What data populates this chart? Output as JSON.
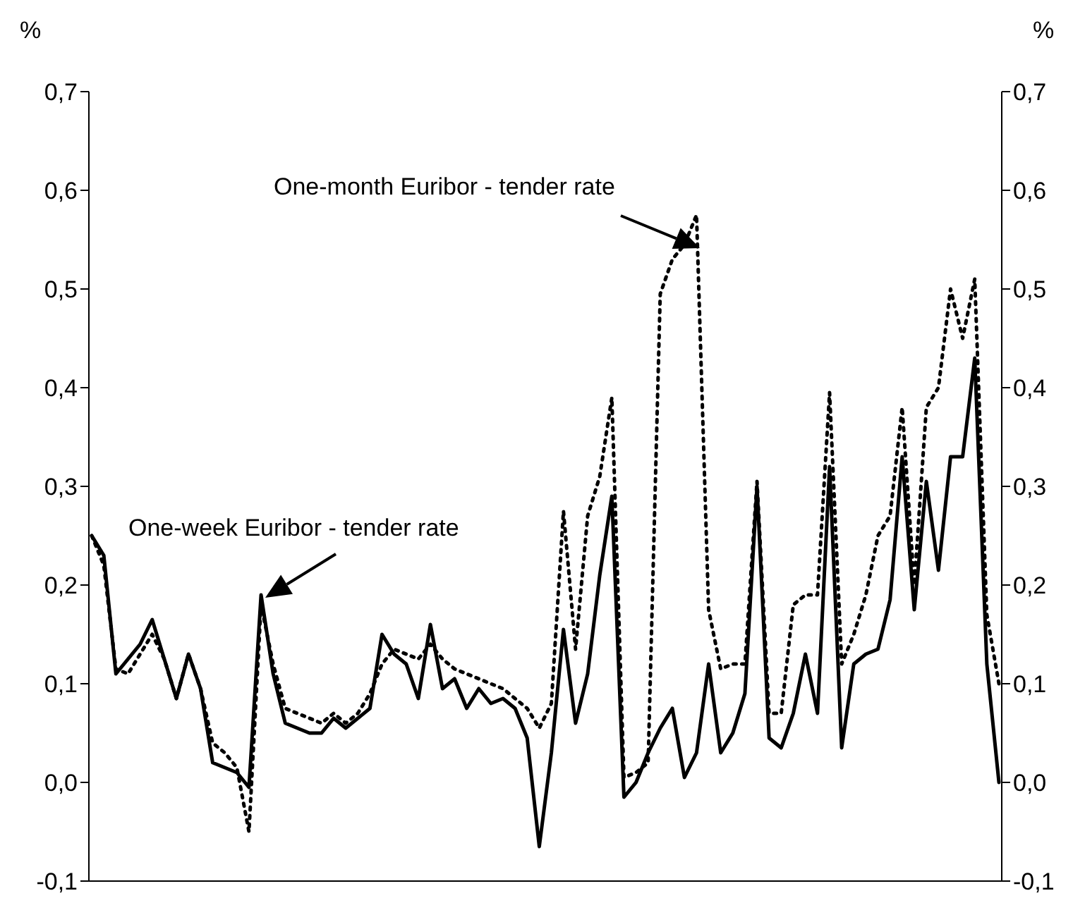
{
  "chart_data": {
    "type": "line",
    "ylabel": "%",
    "y2label": "%",
    "categories": [
      null,
      null,
      null,
      null,
      null,
      null,
      null,
      null,
      null,
      null,
      null,
      null,
      null,
      null,
      null,
      null,
      null,
      null,
      null,
      null,
      null,
      null,
      null,
      null,
      null,
      null,
      null,
      null,
      null,
      null,
      null,
      null,
      null,
      null,
      null,
      null,
      null,
      null,
      null,
      null,
      null,
      null,
      null,
      null,
      null,
      null,
      null,
      null,
      null,
      null,
      null,
      null,
      null,
      null,
      null,
      null,
      null,
      null,
      null,
      null,
      null,
      null,
      null,
      null,
      null,
      null,
      null,
      null,
      null,
      null,
      null,
      null,
      null,
      null,
      null,
      null
    ],
    "series": [
      {
        "color": "#000000",
        "line_style": "solid",
        "values": [
          0.25,
          0.23,
          0.11,
          0.125,
          0.14,
          0.165,
          0.125,
          0.085,
          0.13,
          0.095,
          0.02,
          0.015,
          0.01,
          -0.005,
          0.19,
          0.11,
          0.06,
          0.055,
          0.05,
          0.05,
          0.065,
          0.055,
          0.065,
          0.075,
          0.15,
          0.13,
          0.12,
          0.085,
          0.16,
          0.095,
          0.105,
          0.075,
          0.095,
          0.08,
          0.085,
          0.075,
          0.045,
          -0.065,
          0.03,
          0.155,
          0.06,
          0.11,
          0.21,
          0.29,
          -0.015,
          0.0,
          0.03,
          0.055,
          0.075,
          0.005,
          0.03,
          0.12,
          0.03,
          0.05,
          0.09,
          0.3,
          0.045,
          0.035,
          0.07,
          0.13,
          0.07,
          0.32,
          0.035,
          0.12,
          0.13,
          0.135,
          0.185,
          0.33,
          0.175,
          0.305,
          0.215,
          0.33,
          0.33,
          0.43,
          0.12,
          0.0
        ]
      },
      {
        "color": "#000000",
        "line_style": "dotted",
        "values": [
          0.25,
          0.22,
          0.115,
          0.11,
          0.13,
          0.15,
          0.125,
          0.085,
          0.13,
          0.095,
          0.04,
          0.03,
          0.015,
          -0.05,
          0.18,
          0.12,
          0.075,
          0.07,
          0.065,
          0.06,
          0.07,
          0.06,
          0.07,
          0.09,
          0.12,
          0.135,
          0.13,
          0.125,
          0.14,
          0.125,
          0.115,
          0.11,
          0.105,
          0.1,
          0.095,
          0.085,
          0.075,
          0.055,
          0.08,
          0.275,
          0.135,
          0.27,
          0.31,
          0.39,
          0.005,
          0.01,
          0.02,
          0.495,
          0.53,
          0.545,
          0.575,
          0.175,
          0.115,
          0.12,
          0.12,
          0.305,
          0.07,
          0.07,
          0.18,
          0.19,
          0.19,
          0.395,
          0.12,
          0.15,
          0.19,
          0.25,
          0.27,
          0.38,
          0.2,
          0.38,
          0.4,
          0.5,
          0.45,
          0.51,
          0.17,
          0.1
        ]
      }
    ],
    "annotations": [
      "One-week Euribor - tender rate",
      "One-month Euribor - tender rate"
    ],
    "ylim": [
      -0.1,
      0.7
    ],
    "yticks": [
      {
        "value": -0.1,
        "label": "-0,1"
      },
      {
        "value": 0.0,
        "label": "0,0"
      },
      {
        "value": 0.1,
        "label": "0,1"
      },
      {
        "value": 0.2,
        "label": "0,2"
      },
      {
        "value": 0.3,
        "label": "0,3"
      },
      {
        "value": 0.4,
        "label": "0,4"
      },
      {
        "value": 0.5,
        "label": "0,5"
      },
      {
        "value": 0.6,
        "label": "0,6"
      },
      {
        "value": 0.7,
        "label": "0,7"
      }
    ],
    "y2lim": [
      -0.1,
      0.7
    ],
    "y2ticks": [
      {
        "value": -0.1,
        "label": "-0,1"
      },
      {
        "value": 0.0,
        "label": "0,0"
      },
      {
        "value": 0.1,
        "label": "0,1"
      },
      {
        "value": 0.2,
        "label": "0,2"
      },
      {
        "value": 0.3,
        "label": "0,3"
      },
      {
        "value": 0.4,
        "label": "0,4"
      },
      {
        "value": 0.5,
        "label": "0,5"
      },
      {
        "value": 0.6,
        "label": "0,6"
      },
      {
        "value": 0.7,
        "label": "0,7"
      }
    ],
    "grid": false,
    "legend": false,
    "marker": "none"
  }
}
